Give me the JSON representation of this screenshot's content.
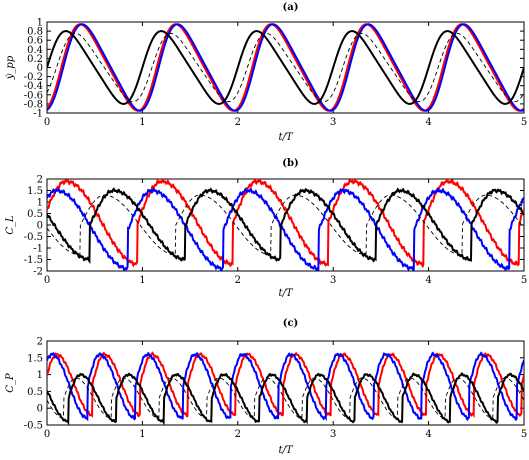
{
  "chart_data": [
    {
      "type": "line",
      "title": "(a)",
      "xlabel": "t/T",
      "ylabel": "ẏ_pp",
      "xlim": [
        0,
        5
      ],
      "ylim": [
        -1,
        1
      ],
      "x_ticks": [
        "0",
        "1",
        "2",
        "3",
        "4",
        "5"
      ],
      "y_ticks": [
        "-1",
        "-0.8",
        "-0.6",
        "-0.4",
        "-0.2",
        "0",
        "0.2",
        "0.4",
        "0.6",
        "0.8",
        "1"
      ],
      "grid": false,
      "series": [
        {
          "color": "#ff0000",
          "style": "solid",
          "period": 1.0,
          "amplitude": 0.95,
          "phase_peak": 0.4
        },
        {
          "color": "#0000ff",
          "style": "solid",
          "period": 1.0,
          "amplitude": 0.95,
          "phase_peak": 0.42
        },
        {
          "color": "#000000",
          "style": "solid",
          "period": 1.0,
          "amplitude": 0.8,
          "phase_peak": 0.25
        },
        {
          "color": "#000000",
          "style": "dashed",
          "period": 1.0,
          "amplitude": 0.75,
          "phase_peak": 0.35
        }
      ]
    },
    {
      "type": "line",
      "title": "(b)",
      "xlabel": "t/T",
      "ylabel": "C_L",
      "xlim": [
        0,
        5
      ],
      "ylim": [
        -2,
        2
      ],
      "x_ticks": [
        "0",
        "1",
        "2",
        "3",
        "4",
        "5"
      ],
      "y_ticks": [
        "-2",
        "-1.5",
        "-1",
        "-0.5",
        "0",
        "0.5",
        "1",
        "1.5",
        "2"
      ],
      "grid": false,
      "series": [
        {
          "color": "#ff0000",
          "style": "solid",
          "period": 1.0,
          "max": 1.9,
          "min": -1.7
        },
        {
          "color": "#0000ff",
          "style": "solid",
          "period": 1.0,
          "max": 1.5,
          "min": -1.9
        },
        {
          "color": "#000000",
          "style": "solid",
          "period": 1.0,
          "max": 1.5,
          "min": -1.5
        },
        {
          "color": "#000000",
          "style": "dashed",
          "period": 1.0,
          "max": 1.3,
          "min": -1.3
        }
      ]
    },
    {
      "type": "line",
      "title": "(c)",
      "xlabel": "t/T",
      "ylabel": "C_P",
      "xlim": [
        0,
        5
      ],
      "ylim": [
        -0.5,
        2
      ],
      "x_ticks": [
        "0",
        "1",
        "2",
        "3",
        "4",
        "5"
      ],
      "y_ticks": [
        "-0.5",
        "0",
        "0.5",
        "1",
        "1.5",
        "2"
      ],
      "grid": false,
      "series": [
        {
          "color": "#ff0000",
          "style": "solid",
          "period": 0.5,
          "max": 1.6,
          "min": -0.2
        },
        {
          "color": "#0000ff",
          "style": "solid",
          "period": 0.5,
          "max": 1.6,
          "min": -0.3
        },
        {
          "color": "#000000",
          "style": "solid",
          "period": 0.5,
          "max": 1.0,
          "min": -0.4
        },
        {
          "color": "#000000",
          "style": "dashed",
          "period": 0.5,
          "max": 0.9,
          "min": -0.3
        }
      ]
    }
  ]
}
